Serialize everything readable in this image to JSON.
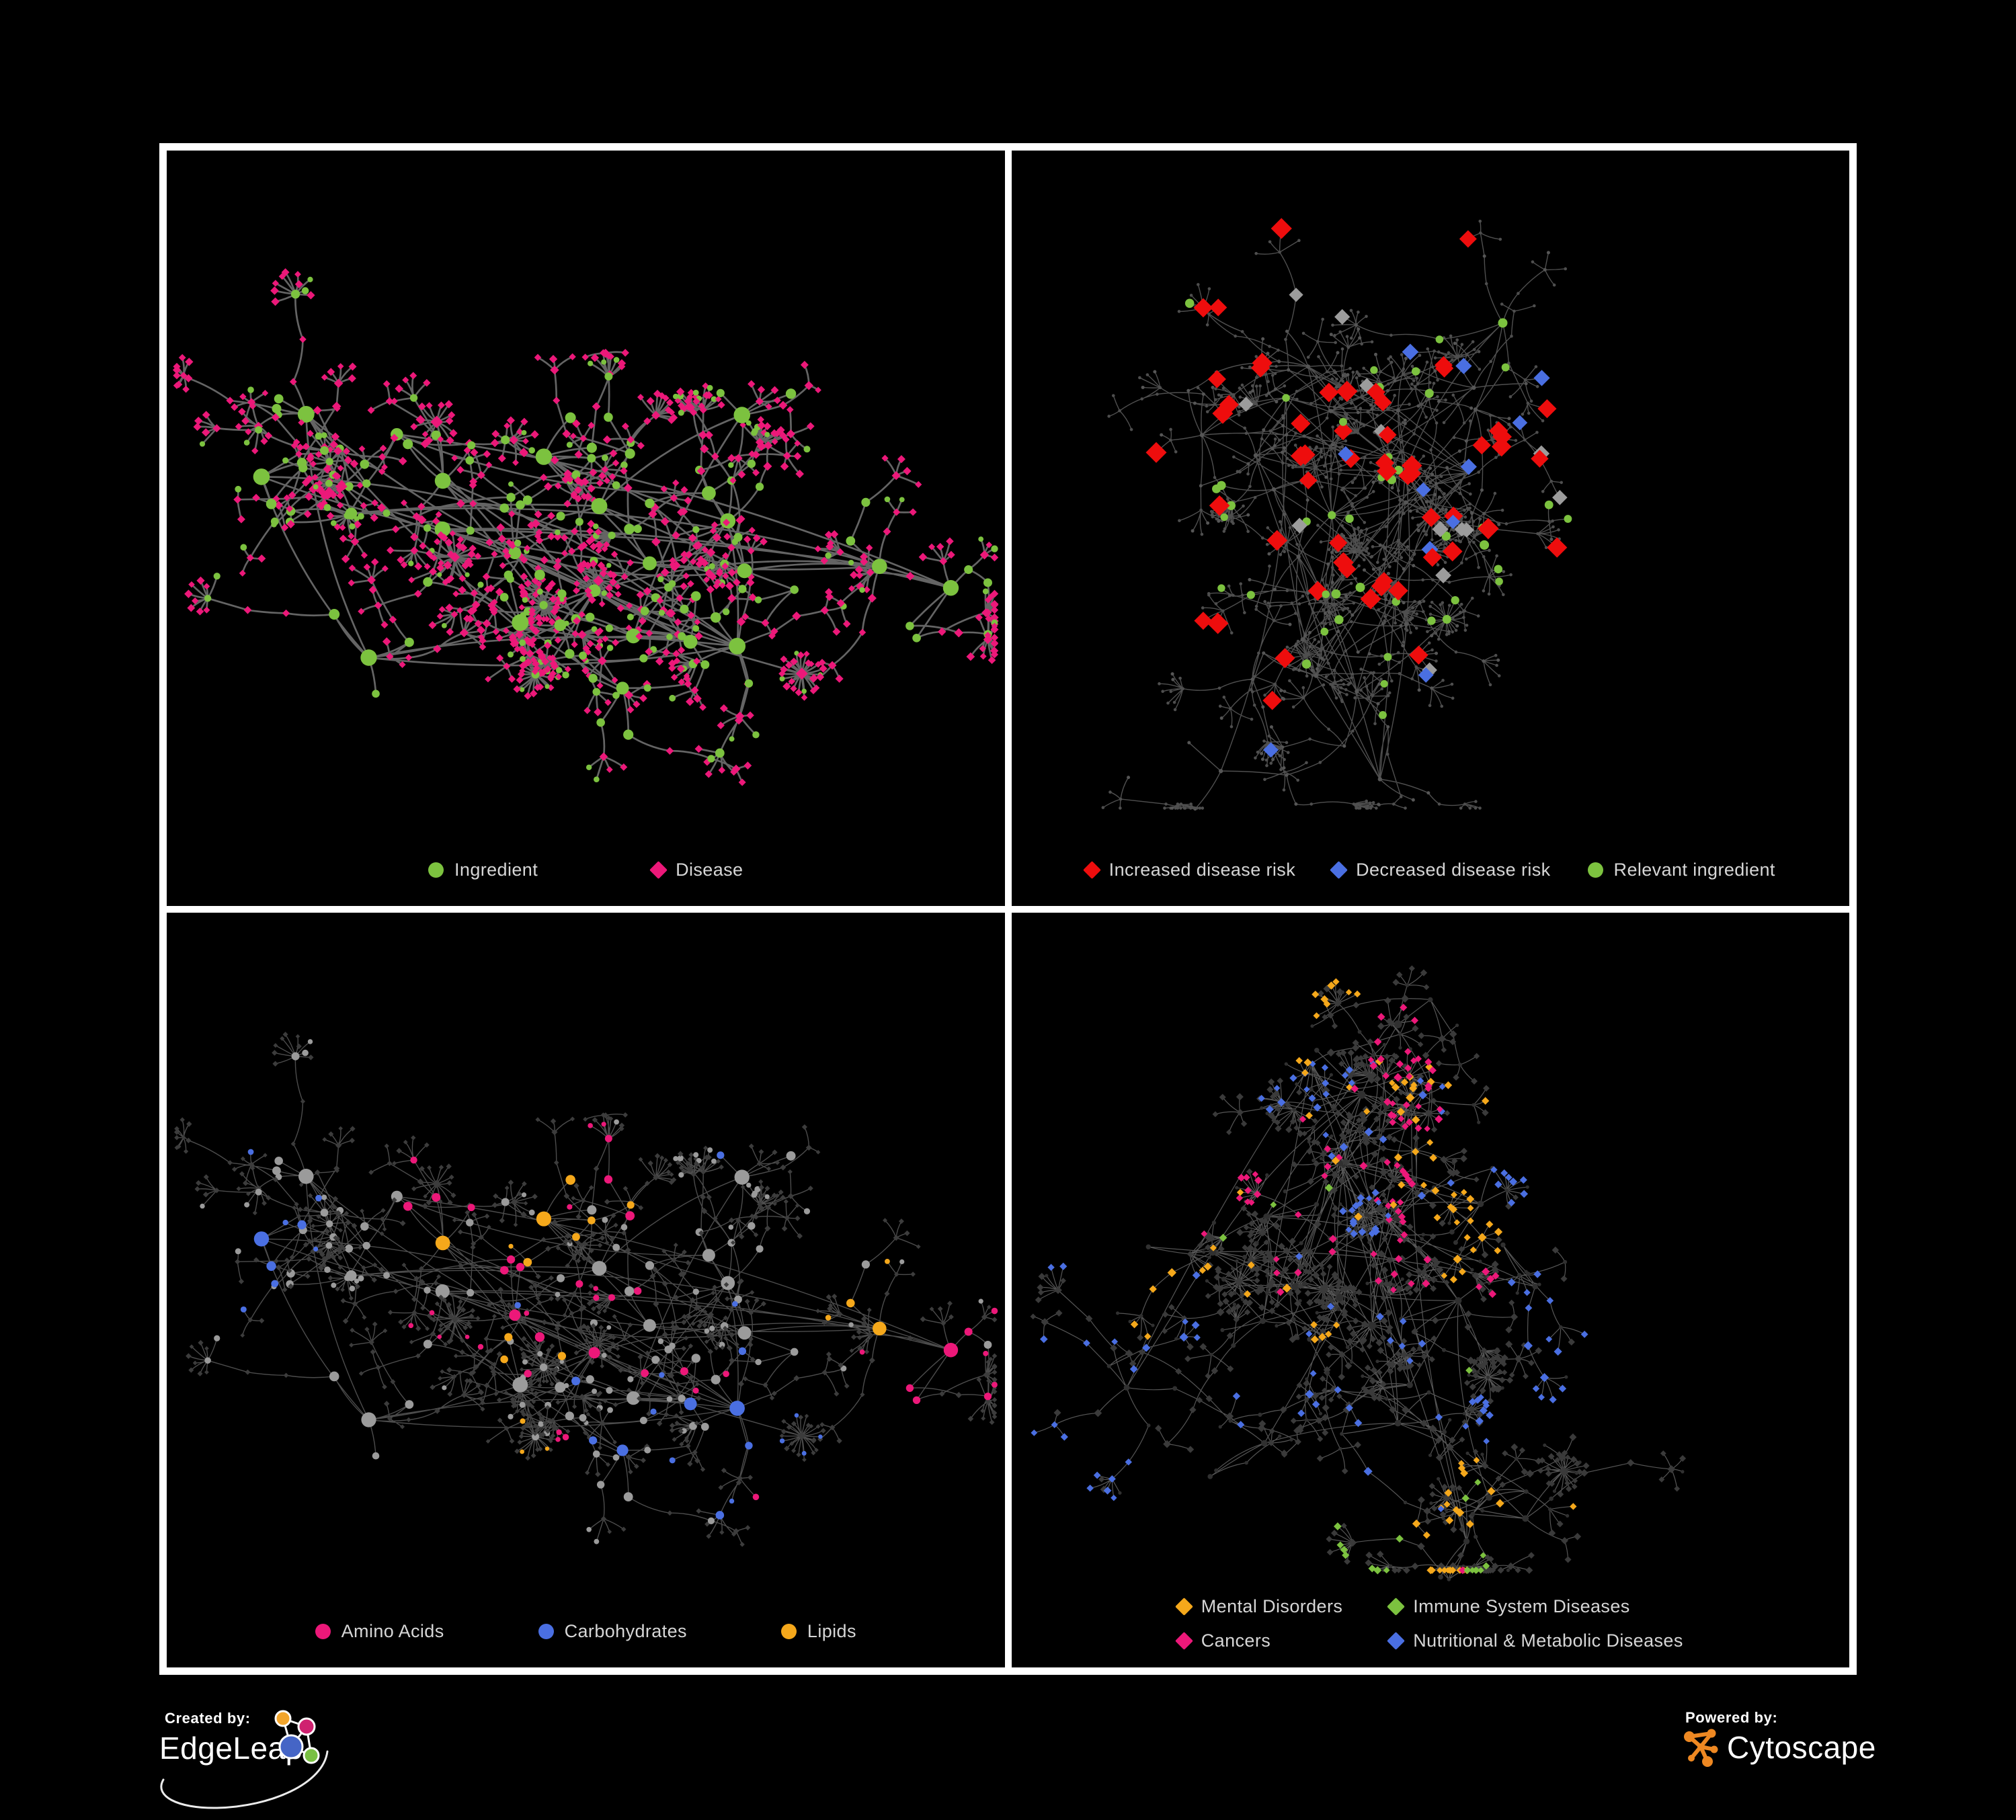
{
  "branding": {
    "created_by_label": "Created by:",
    "created_by_name": "EdgeLeap",
    "powered_by_label": "Powered by:",
    "powered_by_name": "Cytoscape"
  },
  "colors": {
    "green": "#7CC23F",
    "pink": "#EC1879",
    "red": "#EE0D0D",
    "blue": "#4A6FE2",
    "orange": "#F5A81B",
    "silver": "#9C9C9C",
    "frame_white": "#FFFFFF",
    "background": "#000000"
  },
  "panels": [
    {
      "id": "ingredient-disease",
      "seed": 7,
      "style": "tl",
      "legend": {
        "layout": "two",
        "items": [
          {
            "shape": "circle",
            "color": "#7CC23F",
            "label": "Ingredient"
          },
          {
            "shape": "diamond",
            "color": "#EC1879",
            "label": "Disease"
          }
        ]
      }
    },
    {
      "id": "disease-risk",
      "seed": 13,
      "style": "tr",
      "legend": {
        "layout": "three",
        "items": [
          {
            "shape": "diamond",
            "color": "#EE0D0D",
            "label": "Increased disease risk"
          },
          {
            "shape": "diamond",
            "color": "#4A6FE2",
            "label": "Decreased disease risk"
          },
          {
            "shape": "circle",
            "color": "#7CC23F",
            "label": "Relevant ingredient"
          }
        ]
      }
    },
    {
      "id": "nutrient-classes",
      "seed": 7,
      "style": "bl",
      "legend": {
        "layout": "wide3",
        "items": [
          {
            "shape": "circle",
            "color": "#EC1879",
            "label": "Amino Acids"
          },
          {
            "shape": "circle",
            "color": "#4A6FE2",
            "label": "Carbohydrates"
          },
          {
            "shape": "circle",
            "color": "#F5A81B",
            "label": "Lipids"
          }
        ]
      }
    },
    {
      "id": "disease-categories",
      "seed": 29,
      "style": "br",
      "legend": {
        "layout": "grid",
        "items": [
          {
            "shape": "diamond",
            "color": "#F5A81B",
            "label": "Mental Disorders"
          },
          {
            "shape": "diamond",
            "color": "#7CC23F",
            "label": "Immune System Diseases"
          },
          {
            "shape": "diamond",
            "color": "#EC1879",
            "label": "Cancers"
          },
          {
            "shape": "diamond",
            "color": "#4A6FE2",
            "label": "Nutritional & Metabolic Diseases"
          }
        ]
      }
    }
  ]
}
